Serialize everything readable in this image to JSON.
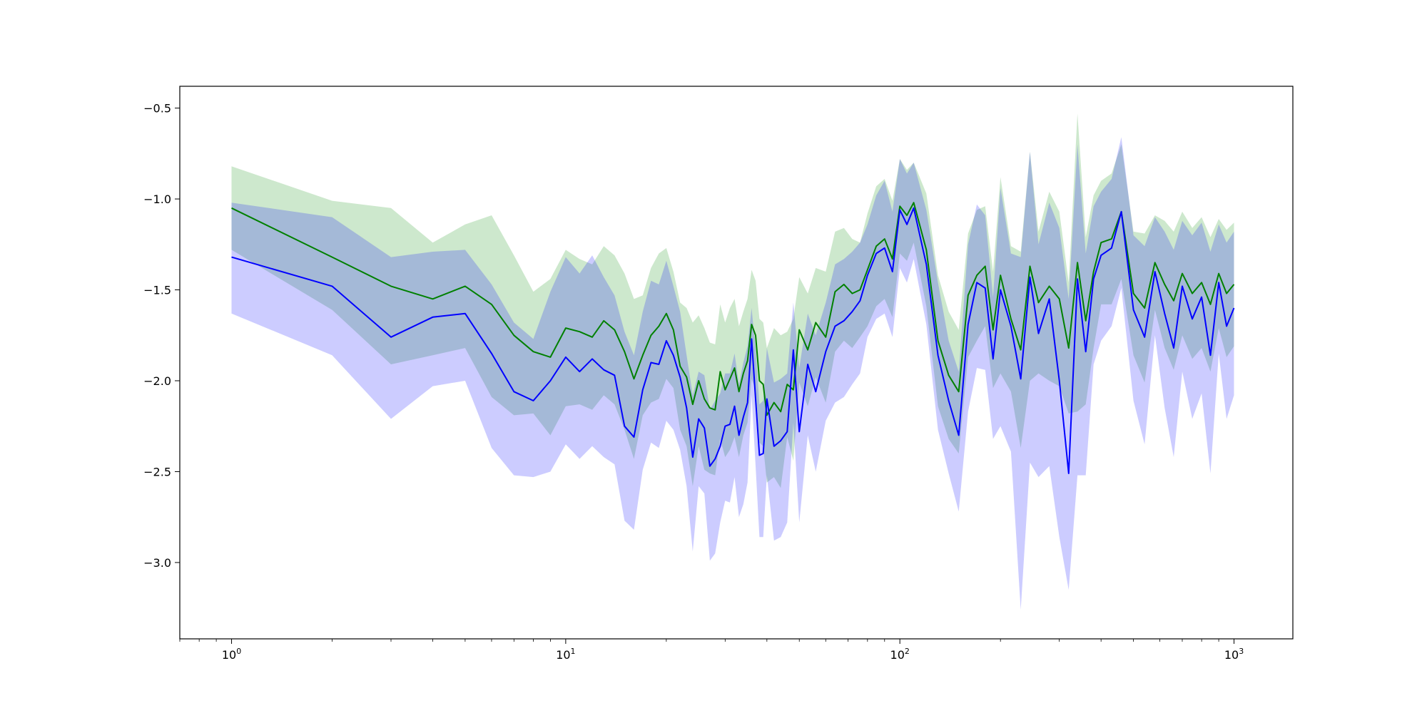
{
  "chart_data": {
    "type": "line",
    "x_scale": "log",
    "xlim": [
      0.7,
      1500
    ],
    "ylim": [
      -3.42,
      -0.38
    ],
    "grid": false,
    "x_ticks": [
      {
        "value": 1,
        "base": "10",
        "exp": "0"
      },
      {
        "value": 10,
        "base": "10",
        "exp": "1"
      },
      {
        "value": 100,
        "base": "10",
        "exp": "2"
      },
      {
        "value": 1000,
        "base": "10",
        "exp": "3"
      }
    ],
    "y_ticks": [
      {
        "value": -0.5,
        "label": "−0.5"
      },
      {
        "value": -1.0,
        "label": "−1.0"
      },
      {
        "value": -1.5,
        "label": "−1.5"
      },
      {
        "value": -2.0,
        "label": "−2.0"
      },
      {
        "value": -2.5,
        "label": "−2.5"
      },
      {
        "value": -3.0,
        "label": "−3.0"
      }
    ],
    "series": [
      {
        "color": "#008000",
        "band_color": "#2ca02c",
        "band_opacity": 0.24,
        "x": [
          1,
          2,
          3,
          4,
          5,
          6,
          7,
          8,
          9,
          10,
          11,
          12,
          13,
          14,
          15,
          16,
          17,
          18,
          19,
          20,
          21,
          22,
          23,
          24,
          25,
          26,
          27,
          28,
          29,
          30,
          31,
          32,
          33,
          34,
          35,
          36,
          37,
          38,
          39,
          40,
          42,
          44,
          46,
          48,
          50,
          53,
          56,
          60,
          64,
          68,
          72,
          76,
          80,
          85,
          90,
          95,
          100,
          105,
          110,
          120,
          130,
          140,
          150,
          160,
          170,
          180,
          190,
          200,
          215,
          230,
          245,
          260,
          280,
          300,
          320,
          340,
          360,
          380,
          400,
          430,
          460,
          500,
          540,
          580,
          620,
          660,
          700,
          750,
          800,
          850,
          900,
          950,
          1000
        ],
        "y": [
          -1.05,
          -1.32,
          -1.48,
          -1.55,
          -1.48,
          -1.58,
          -1.75,
          -1.84,
          -1.87,
          -1.71,
          -1.73,
          -1.76,
          -1.67,
          -1.72,
          -1.84,
          -1.99,
          -1.86,
          -1.75,
          -1.7,
          -1.63,
          -1.72,
          -1.92,
          -1.98,
          -2.13,
          -2.0,
          -2.1,
          -2.15,
          -2.16,
          -1.95,
          -2.05,
          -1.99,
          -1.93,
          -2.06,
          -1.96,
          -1.89,
          -1.69,
          -1.75,
          -2.0,
          -2.02,
          -2.19,
          -2.12,
          -2.17,
          -2.02,
          -2.05,
          -1.72,
          -1.83,
          -1.68,
          -1.76,
          -1.51,
          -1.47,
          -1.52,
          -1.5,
          -1.39,
          -1.26,
          -1.22,
          -1.33,
          -1.04,
          -1.09,
          -1.02,
          -1.28,
          -1.78,
          -1.97,
          -2.06,
          -1.53,
          -1.42,
          -1.37,
          -1.72,
          -1.42,
          -1.66,
          -1.83,
          -1.37,
          -1.57,
          -1.48,
          -1.55,
          -1.82,
          -1.35,
          -1.67,
          -1.4,
          -1.24,
          -1.22,
          -1.07,
          -1.52,
          -1.6,
          -1.35,
          -1.47,
          -1.56,
          -1.41,
          -1.52,
          -1.46,
          -1.58,
          -1.41,
          -1.52,
          -1.47
        ],
        "upper": [
          -0.82,
          -1.01,
          -1.05,
          -1.24,
          -1.14,
          -1.09,
          -1.31,
          -1.51,
          -1.44,
          -1.28,
          -1.33,
          -1.36,
          -1.26,
          -1.31,
          -1.41,
          -1.55,
          -1.53,
          -1.38,
          -1.3,
          -1.27,
          -1.4,
          -1.57,
          -1.6,
          -1.68,
          -1.64,
          -1.71,
          -1.79,
          -1.8,
          -1.58,
          -1.68,
          -1.6,
          -1.55,
          -1.7,
          -1.62,
          -1.55,
          -1.39,
          -1.45,
          -1.66,
          -1.68,
          -1.82,
          -1.71,
          -1.75,
          -1.73,
          -1.66,
          -1.43,
          -1.52,
          -1.38,
          -1.4,
          -1.18,
          -1.16,
          -1.22,
          -1.24,
          -1.08,
          -0.93,
          -0.89,
          -1.01,
          -0.78,
          -0.84,
          -0.8,
          -0.97,
          -1.42,
          -1.62,
          -1.72,
          -1.19,
          -1.06,
          -1.04,
          -1.4,
          -0.88,
          -1.26,
          -1.29,
          -0.74,
          -1.18,
          -0.96,
          -1.07,
          -1.46,
          -0.53,
          -1.21,
          -0.98,
          -0.9,
          -0.86,
          -0.7,
          -1.18,
          -1.19,
          -1.09,
          -1.12,
          -1.18,
          -1.07,
          -1.16,
          -1.1,
          -1.21,
          -1.11,
          -1.17,
          -1.13
        ],
        "lower": [
          -1.28,
          -1.61,
          -1.91,
          -1.86,
          -1.82,
          -2.09,
          -2.19,
          -2.18,
          -2.3,
          -2.14,
          -2.13,
          -2.16,
          -2.08,
          -2.13,
          -2.27,
          -2.43,
          -2.19,
          -2.12,
          -2.1,
          -1.99,
          -2.04,
          -2.27,
          -2.36,
          -2.58,
          -2.36,
          -2.49,
          -2.51,
          -2.52,
          -2.32,
          -2.42,
          -2.38,
          -2.31,
          -2.42,
          -2.3,
          -2.23,
          -1.99,
          -2.05,
          -2.34,
          -2.36,
          -2.56,
          -2.53,
          -2.59,
          -2.31,
          -2.44,
          -2.01,
          -2.14,
          -1.98,
          -2.12,
          -1.84,
          -1.78,
          -1.82,
          -1.76,
          -1.7,
          -1.59,
          -1.55,
          -1.65,
          -1.3,
          -1.34,
          -1.24,
          -1.59,
          -2.14,
          -2.32,
          -2.4,
          -1.87,
          -1.78,
          -1.7,
          -2.04,
          -1.96,
          -2.06,
          -2.37,
          -2.0,
          -1.96,
          -2.0,
          -2.03,
          -2.18,
          -2.17,
          -2.13,
          -1.82,
          -1.58,
          -1.58,
          -1.44,
          -1.86,
          -2.01,
          -1.61,
          -1.82,
          -1.94,
          -1.75,
          -1.88,
          -1.82,
          -1.95,
          -1.71,
          -1.87,
          -1.81
        ]
      },
      {
        "color": "#0000ff",
        "band_color": "#0000ff",
        "band_opacity": 0.2,
        "x": [
          1,
          2,
          3,
          4,
          5,
          6,
          7,
          8,
          9,
          10,
          11,
          12,
          13,
          14,
          15,
          16,
          17,
          18,
          19,
          20,
          21,
          22,
          23,
          24,
          25,
          26,
          27,
          28,
          29,
          30,
          31,
          32,
          33,
          34,
          35,
          36,
          37,
          38,
          39,
          40,
          42,
          44,
          46,
          48,
          50,
          53,
          56,
          60,
          64,
          68,
          72,
          76,
          80,
          85,
          90,
          95,
          100,
          105,
          110,
          120,
          130,
          140,
          150,
          160,
          170,
          180,
          190,
          200,
          215,
          230,
          245,
          260,
          280,
          300,
          320,
          340,
          360,
          380,
          400,
          430,
          460,
          500,
          540,
          580,
          620,
          660,
          700,
          750,
          800,
          850,
          900,
          950,
          1000
        ],
        "y": [
          -1.32,
          -1.48,
          -1.76,
          -1.65,
          -1.63,
          -1.85,
          -2.06,
          -2.11,
          -2.0,
          -1.87,
          -1.95,
          -1.88,
          -1.94,
          -1.97,
          -2.25,
          -2.31,
          -2.05,
          -1.9,
          -1.91,
          -1.78,
          -1.86,
          -1.98,
          -2.15,
          -2.42,
          -2.21,
          -2.26,
          -2.47,
          -2.43,
          -2.36,
          -2.25,
          -2.24,
          -2.14,
          -2.3,
          -2.2,
          -2.12,
          -1.77,
          -2.1,
          -2.41,
          -2.4,
          -2.1,
          -2.36,
          -2.33,
          -2.28,
          -1.83,
          -2.28,
          -1.91,
          -2.06,
          -1.84,
          -1.7,
          -1.67,
          -1.62,
          -1.56,
          -1.42,
          -1.3,
          -1.27,
          -1.4,
          -1.06,
          -1.14,
          -1.05,
          -1.36,
          -1.86,
          -2.11,
          -2.3,
          -1.69,
          -1.46,
          -1.49,
          -1.88,
          -1.5,
          -1.7,
          -1.99,
          -1.43,
          -1.74,
          -1.55,
          -2.0,
          -2.51,
          -1.44,
          -1.84,
          -1.44,
          -1.31,
          -1.27,
          -1.07,
          -1.61,
          -1.76,
          -1.4,
          -1.63,
          -1.82,
          -1.48,
          -1.66,
          -1.54,
          -1.86,
          -1.46,
          -1.7,
          -1.6
        ],
        "upper": [
          -1.02,
          -1.1,
          -1.32,
          -1.29,
          -1.28,
          -1.47,
          -1.68,
          -1.77,
          -1.51,
          -1.32,
          -1.41,
          -1.31,
          -1.43,
          -1.53,
          -1.73,
          -1.86,
          -1.62,
          -1.45,
          -1.47,
          -1.34,
          -1.48,
          -1.62,
          -1.86,
          -2.08,
          -1.95,
          -1.97,
          -2.16,
          -2.11,
          -2.07,
          -1.96,
          -1.96,
          -1.85,
          -2.02,
          -1.9,
          -1.81,
          -1.6,
          -1.83,
          -2.13,
          -2.11,
          -1.82,
          -2.01,
          -1.99,
          -1.96,
          -1.57,
          -1.93,
          -1.63,
          -1.75,
          -1.57,
          -1.36,
          -1.33,
          -1.29,
          -1.24,
          -1.14,
          -0.98,
          -0.9,
          -1.07,
          -0.78,
          -0.86,
          -0.8,
          -1.06,
          -1.46,
          -1.78,
          -1.95,
          -1.25,
          -1.03,
          -1.09,
          -1.54,
          -0.94,
          -1.3,
          -1.32,
          -0.74,
          -1.25,
          -1.02,
          -1.16,
          -1.55,
          -0.7,
          -1.3,
          -1.04,
          -0.96,
          -0.89,
          -0.66,
          -1.2,
          -1.26,
          -1.1,
          -1.18,
          -1.28,
          -1.12,
          -1.2,
          -1.13,
          -1.29,
          -1.14,
          -1.24,
          -1.18
        ],
        "lower": [
          -1.63,
          -1.86,
          -2.21,
          -2.03,
          -2.0,
          -2.37,
          -2.52,
          -2.53,
          -2.5,
          -2.35,
          -2.43,
          -2.36,
          -2.42,
          -2.46,
          -2.77,
          -2.82,
          -2.49,
          -2.34,
          -2.37,
          -2.22,
          -2.27,
          -2.38,
          -2.58,
          -2.94,
          -2.58,
          -2.62,
          -2.99,
          -2.95,
          -2.78,
          -2.66,
          -2.67,
          -2.53,
          -2.75,
          -2.68,
          -2.56,
          -2.08,
          -2.47,
          -2.86,
          -2.86,
          -2.52,
          -2.88,
          -2.86,
          -2.78,
          -2.23,
          -2.78,
          -2.3,
          -2.5,
          -2.22,
          -2.12,
          -2.09,
          -2.02,
          -1.96,
          -1.76,
          -1.66,
          -1.63,
          -1.76,
          -1.38,
          -1.46,
          -1.33,
          -1.69,
          -2.27,
          -2.51,
          -2.72,
          -2.17,
          -1.93,
          -1.94,
          -2.32,
          -2.25,
          -2.39,
          -3.26,
          -2.45,
          -2.53,
          -2.47,
          -2.86,
          -3.15,
          -2.52,
          -2.52,
          -1.91,
          -1.78,
          -1.7,
          -1.49,
          -2.11,
          -2.35,
          -1.75,
          -2.15,
          -2.42,
          -1.95,
          -2.21,
          -2.07,
          -2.51,
          -1.85,
          -2.21,
          -2.08
        ]
      }
    ]
  }
}
